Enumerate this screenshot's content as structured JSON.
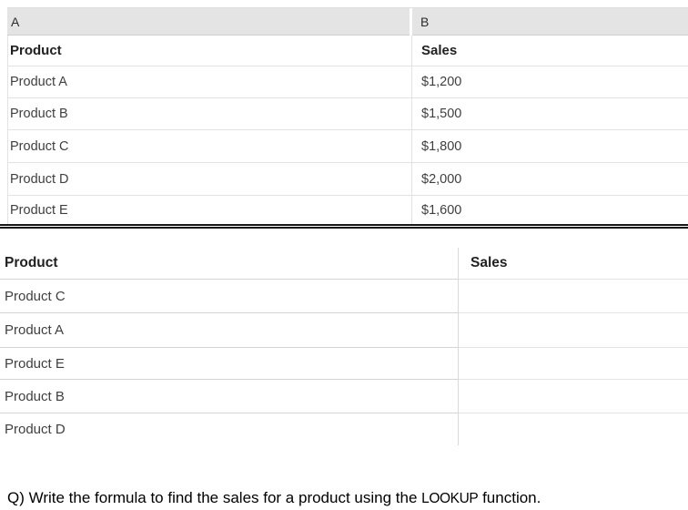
{
  "table1": {
    "column_headers": {
      "a": "A",
      "b": "B"
    },
    "field_headers": {
      "product": "Product",
      "sales": "Sales"
    },
    "rows": [
      {
        "product": "Product A",
        "sales": "$1,200"
      },
      {
        "product": "Product B",
        "sales": "$1,500"
      },
      {
        "product": "Product C",
        "sales": "$1,800"
      },
      {
        "product": "Product D",
        "sales": "$2,000"
      },
      {
        "product": "Product E",
        "sales": "$1,600"
      }
    ]
  },
  "table2": {
    "field_headers": {
      "product": "Product",
      "sales": "Sales"
    },
    "rows": [
      {
        "product": "Product C",
        "sales": ""
      },
      {
        "product": "Product A",
        "sales": ""
      },
      {
        "product": "Product E",
        "sales": ""
      },
      {
        "product": "Product B",
        "sales": ""
      },
      {
        "product": "Product D",
        "sales": ""
      }
    ]
  },
  "question": {
    "prefix": "Q) Write the formula to find the sales for a product using the ",
    "keyword": "LOOKUP",
    "suffix": " function."
  },
  "colors": {
    "column_header_bg": "#e4e4e4",
    "grid_line": "#e2e2e2",
    "double_border": "#171717",
    "header_text": "#212121",
    "cell_text": "#3f3f3f"
  }
}
